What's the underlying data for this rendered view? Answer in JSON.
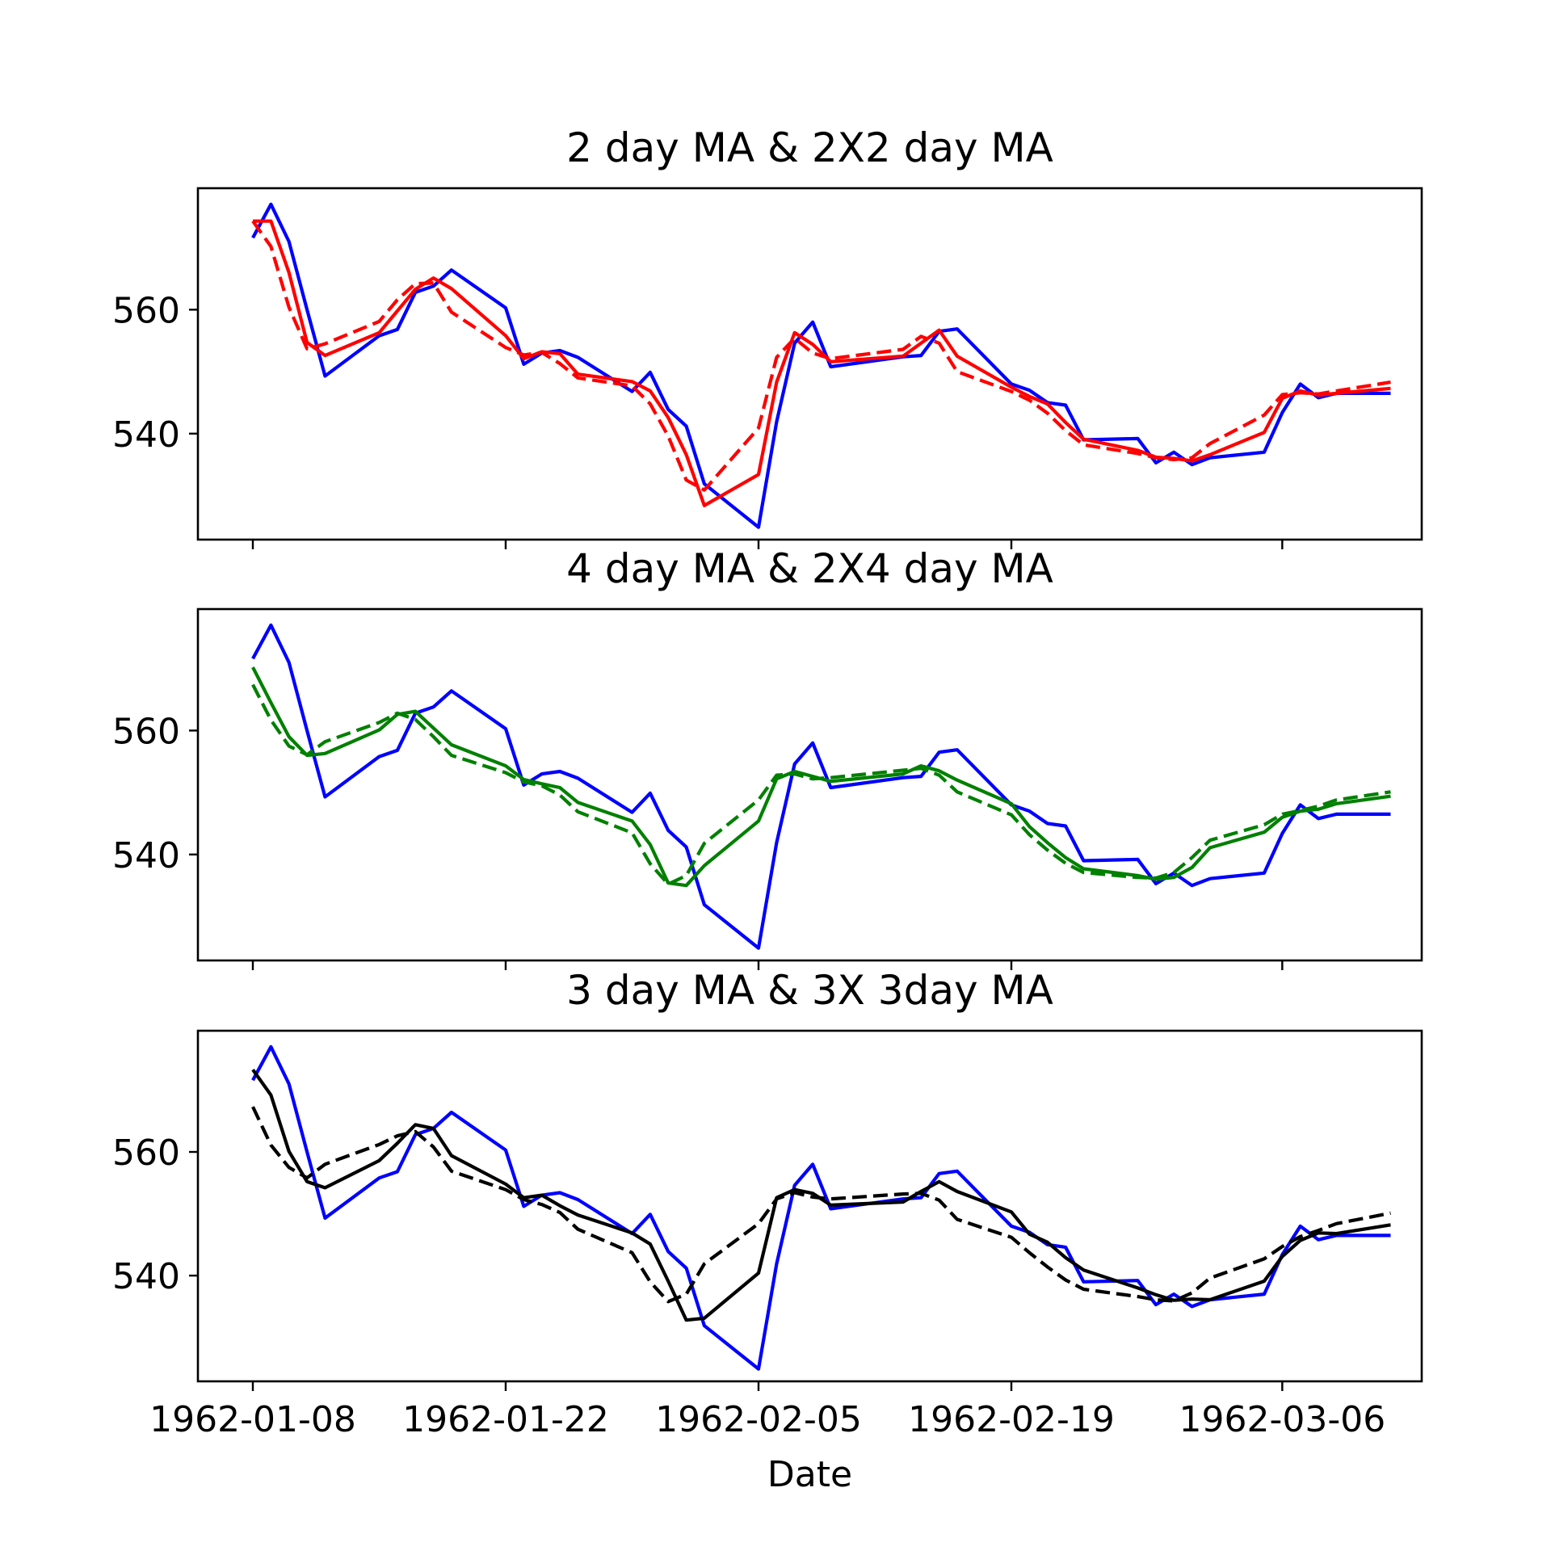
{
  "chart_data": [
    {
      "type": "line",
      "title": "2 day MA & 2X2 day MA",
      "xlabel": "",
      "ylabel": "",
      "ylim": [
        522.9,
        579.6
      ],
      "x": [
        "1962-01-08",
        "1962-01-09",
        "1962-01-10",
        "1962-01-11",
        "1962-01-12",
        "1962-01-15",
        "1962-01-16",
        "1962-01-17",
        "1962-01-18",
        "1962-01-19",
        "1962-01-22",
        "1962-01-23",
        "1962-01-24",
        "1962-01-25",
        "1962-01-26",
        "1962-01-29",
        "1962-01-30",
        "1962-01-31",
        "1962-02-01",
        "1962-02-02",
        "1962-02-05",
        "1962-02-06",
        "1962-02-07",
        "1962-02-08",
        "1962-02-09",
        "1962-02-13",
        "1962-02-14",
        "1962-02-15",
        "1962-02-16",
        "1962-02-19",
        "1962-02-20",
        "1962-02-21",
        "1962-02-22",
        "1962-02-23",
        "1962-02-26",
        "1962-02-27",
        "1962-02-28",
        "1962-03-01",
        "1962-03-02",
        "1962-03-05",
        "1962-03-06",
        "1962-03-07",
        "1962-03-08",
        "1962-03-09",
        "1962-03-12"
      ],
      "yticks": [
        540,
        560
      ],
      "xticks": [
        "1962-01-08",
        "1962-01-22",
        "1962-02-05",
        "1962-02-19",
        "1962-03-06"
      ],
      "show_xtick_labels": false,
      "grid": false,
      "series": [
        {
          "color": "#0000ff",
          "dash": "solid",
          "values": [
            571.6,
            577.0,
            571.0,
            560.0,
            549.3,
            555.8,
            556.8,
            562.8,
            563.8,
            566.4,
            560.3,
            551.2,
            553.0,
            553.4,
            552.3,
            546.8,
            549.9,
            543.9,
            541.2,
            531.9,
            524.9,
            541.9,
            554.6,
            558.0,
            550.8,
            552.4,
            552.6,
            556.5,
            556.9,
            548.0,
            547.0,
            545.0,
            544.6,
            539.0,
            539.2,
            535.3,
            537.0,
            535.0,
            536.1,
            537.0,
            543.4,
            548.0,
            545.8,
            546.5,
            546.5
          ]
        },
        {
          "color": "#ff0000",
          "dash": "solid",
          "values": [
            574.3,
            574.3,
            566.0,
            554.7,
            552.6,
            556.3,
            559.8,
            563.3,
            565.1,
            563.4,
            555.8,
            552.1,
            553.2,
            552.9,
            549.6,
            548.4,
            546.9,
            542.6,
            536.6,
            528.4,
            533.4,
            548.3,
            556.3,
            554.4,
            551.6,
            552.5,
            554.6,
            556.7,
            552.5,
            547.5,
            546.0,
            544.8,
            541.8,
            539.1,
            537.3,
            536.2,
            536.0,
            535.6,
            536.6,
            540.2,
            545.7,
            546.9,
            546.2,
            546.5,
            547.3
          ]
        },
        {
          "color": "#ff0000",
          "dash": "dashed",
          "values": [
            574.3,
            570.2,
            560.4,
            553.7,
            554.5,
            558.1,
            561.6,
            564.2,
            564.3,
            559.6,
            553.9,
            552.7,
            553.1,
            551.3,
            549.0,
            547.7,
            544.8,
            539.6,
            532.5,
            530.9,
            540.9,
            552.3,
            555.4,
            553.0,
            552.1,
            553.6,
            555.7,
            554.6,
            550.0,
            546.8,
            545.4,
            543.3,
            540.5,
            538.2,
            536.8,
            536.1,
            535.8,
            536.1,
            538.4,
            543.0,
            546.3,
            546.6,
            546.4,
            546.9,
            548.3
          ]
        }
      ]
    },
    {
      "type": "line",
      "title": "4 day MA & 2X4 day MA",
      "xlabel": "",
      "ylabel": "",
      "ylim": [
        522.9,
        579.6
      ],
      "x": [
        "1962-01-08",
        "1962-01-09",
        "1962-01-10",
        "1962-01-11",
        "1962-01-12",
        "1962-01-15",
        "1962-01-16",
        "1962-01-17",
        "1962-01-18",
        "1962-01-19",
        "1962-01-22",
        "1962-01-23",
        "1962-01-24",
        "1962-01-25",
        "1962-01-26",
        "1962-01-29",
        "1962-01-30",
        "1962-01-31",
        "1962-02-01",
        "1962-02-02",
        "1962-02-05",
        "1962-02-06",
        "1962-02-07",
        "1962-02-08",
        "1962-02-09",
        "1962-02-13",
        "1962-02-14",
        "1962-02-15",
        "1962-02-16",
        "1962-02-19",
        "1962-02-20",
        "1962-02-21",
        "1962-02-22",
        "1962-02-23",
        "1962-02-26",
        "1962-02-27",
        "1962-02-28",
        "1962-03-01",
        "1962-03-02",
        "1962-03-05",
        "1962-03-06",
        "1962-03-07",
        "1962-03-08",
        "1962-03-09",
        "1962-03-12"
      ],
      "yticks": [
        540,
        560
      ],
      "xticks": [
        "1962-01-08",
        "1962-01-22",
        "1962-02-05",
        "1962-02-19",
        "1962-03-06"
      ],
      "show_xtick_labels": false,
      "grid": false,
      "series": [
        {
          "color": "#0000ff",
          "dash": "solid",
          "values": [
            571.6,
            577.0,
            571.0,
            560.0,
            549.3,
            555.8,
            556.8,
            562.8,
            563.8,
            566.4,
            560.3,
            551.2,
            553.0,
            553.4,
            552.3,
            546.8,
            549.9,
            543.9,
            541.2,
            531.9,
            524.9,
            541.9,
            554.6,
            558.0,
            550.8,
            552.4,
            552.6,
            556.5,
            556.9,
            548.0,
            547.0,
            545.0,
            544.6,
            539.0,
            539.2,
            535.3,
            537.0,
            535.0,
            536.1,
            537.0,
            543.4,
            548.0,
            545.8,
            546.5,
            546.5
          ]
        },
        {
          "color": "#008000",
          "dash": "solid",
          "values": [
            570.2,
            564.5,
            559.0,
            556.0,
            556.3,
            560.1,
            562.6,
            563.1,
            560.4,
            557.7,
            554.3,
            552.1,
            551.4,
            550.8,
            548.4,
            545.4,
            541.6,
            535.4,
            535.0,
            538.2,
            545.4,
            552.2,
            553.4,
            552.6,
            551.8,
            553.0,
            554.3,
            553.5,
            552.0,
            548.2,
            544.5,
            541.9,
            539.5,
            537.7,
            536.6,
            536.0,
            536.3,
            537.9,
            541.1,
            543.6,
            546.0,
            547.0,
            547.3,
            548.2,
            549.4
          ]
        },
        {
          "color": "#008000",
          "dash": "dashed",
          "values": [
            567.4,
            561.7,
            557.5,
            556.1,
            558.2,
            561.3,
            562.8,
            561.8,
            559.0,
            556.0,
            553.2,
            551.7,
            551.1,
            549.6,
            546.9,
            543.5,
            538.5,
            535.2,
            536.6,
            541.8,
            548.8,
            552.8,
            553.0,
            552.2,
            552.4,
            553.6,
            553.9,
            552.8,
            550.1,
            546.4,
            543.2,
            540.7,
            538.6,
            537.1,
            536.3,
            536.2,
            537.1,
            539.5,
            542.3,
            544.8,
            546.5,
            547.1,
            547.8,
            548.8,
            550.1
          ]
        }
      ]
    },
    {
      "type": "line",
      "title": "3 day MA & 3X 3day MA",
      "xlabel": "Date",
      "ylabel": "",
      "ylim": [
        522.9,
        579.6
      ],
      "x": [
        "1962-01-08",
        "1962-01-09",
        "1962-01-10",
        "1962-01-11",
        "1962-01-12",
        "1962-01-15",
        "1962-01-16",
        "1962-01-17",
        "1962-01-18",
        "1962-01-19",
        "1962-01-22",
        "1962-01-23",
        "1962-01-24",
        "1962-01-25",
        "1962-01-26",
        "1962-01-29",
        "1962-01-30",
        "1962-01-31",
        "1962-02-01",
        "1962-02-02",
        "1962-02-05",
        "1962-02-06",
        "1962-02-07",
        "1962-02-08",
        "1962-02-09",
        "1962-02-13",
        "1962-02-14",
        "1962-02-15",
        "1962-02-16",
        "1962-02-19",
        "1962-02-20",
        "1962-02-21",
        "1962-02-22",
        "1962-02-23",
        "1962-02-26",
        "1962-02-27",
        "1962-02-28",
        "1962-03-01",
        "1962-03-02",
        "1962-03-05",
        "1962-03-06",
        "1962-03-07",
        "1962-03-08",
        "1962-03-09",
        "1962-03-12"
      ],
      "yticks": [
        540,
        560
      ],
      "xticks": [
        "1962-01-08",
        "1962-01-22",
        "1962-02-05",
        "1962-02-19",
        "1962-03-06"
      ],
      "show_xtick_labels": true,
      "grid": false,
      "series": [
        {
          "color": "#0000ff",
          "dash": "solid",
          "values": [
            571.6,
            577.0,
            571.0,
            560.0,
            549.3,
            555.8,
            556.8,
            562.8,
            563.8,
            566.4,
            560.3,
            551.2,
            553.0,
            553.4,
            552.3,
            546.8,
            549.9,
            543.9,
            541.2,
            531.9,
            524.9,
            541.9,
            554.6,
            558.0,
            550.8,
            552.4,
            552.6,
            556.5,
            556.9,
            548.0,
            547.0,
            545.0,
            544.6,
            539.0,
            539.2,
            535.3,
            537.0,
            535.0,
            536.1,
            537.0,
            543.4,
            548.0,
            545.8,
            546.5,
            546.5
          ]
        },
        {
          "color": "#000000",
          "dash": "solid",
          "values": [
            573.3,
            569.2,
            560.1,
            555.2,
            554.2,
            558.6,
            561.4,
            564.4,
            563.8,
            559.4,
            554.8,
            552.6,
            553.0,
            551.3,
            549.8,
            546.9,
            545.1,
            539.1,
            532.8,
            533.1,
            540.4,
            552.6,
            553.9,
            553.3,
            551.4,
            551.9,
            553.6,
            555.2,
            553.6,
            550.3,
            546.7,
            545.4,
            542.9,
            540.9,
            538.0,
            536.9,
            536.0,
            536.2,
            536.1,
            539.1,
            543.1,
            545.7,
            546.9,
            546.8,
            548.2
          ]
        },
        {
          "color": "#000000",
          "dash": "dashed",
          "values": [
            567.3,
            561.1,
            557.5,
            555.8,
            558.0,
            561.2,
            562.6,
            563.3,
            560.8,
            556.9,
            553.9,
            552.3,
            551.5,
            550.2,
            547.5,
            543.7,
            539.0,
            535.8,
            537.0,
            541.9,
            548.4,
            552.4,
            553.4,
            552.7,
            552.4,
            553.2,
            553.3,
            552.2,
            549.1,
            546.2,
            543.7,
            541.4,
            539.3,
            537.8,
            536.6,
            536.1,
            535.9,
            537.2,
            539.6,
            542.7,
            544.7,
            546.3,
            547.3,
            548.4,
            550.1
          ]
        }
      ]
    }
  ]
}
